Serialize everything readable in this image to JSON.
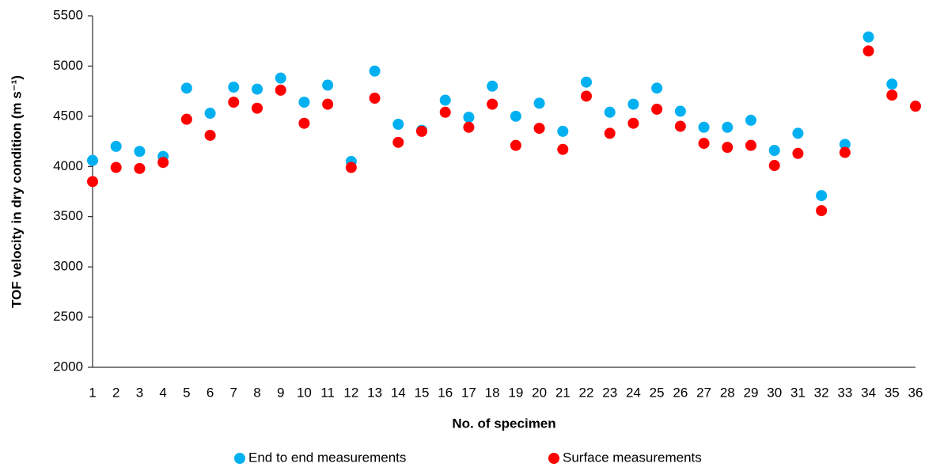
{
  "chart_data": {
    "type": "scatter",
    "x_label": "No. of specimen",
    "y_label": "TOF velocity in dry condition (m s⁻¹)",
    "x": [
      1,
      2,
      3,
      4,
      5,
      6,
      7,
      8,
      9,
      10,
      11,
      12,
      13,
      14,
      15,
      16,
      17,
      18,
      19,
      20,
      21,
      22,
      23,
      24,
      25,
      26,
      27,
      28,
      29,
      30,
      31,
      32,
      33,
      34,
      35,
      36
    ],
    "series": [
      {
        "name": "End to end measurements",
        "color": "#00b0f0",
        "values": [
          4060,
          4200,
          4150,
          4100,
          4780,
          4530,
          4790,
          4770,
          4880,
          4640,
          4810,
          4050,
          4950,
          4420,
          4360,
          4660,
          4490,
          4800,
          4500,
          4630,
          4350,
          4840,
          4540,
          4620,
          4780,
          4550,
          4390,
          4390,
          4460,
          4160,
          4330,
          3710,
          4220,
          5290,
          4820,
          null
        ]
      },
      {
        "name": "Surface measurements",
        "color": "#ff0000",
        "values": [
          3850,
          3990,
          3980,
          4040,
          4470,
          4310,
          4640,
          4580,
          4760,
          4430,
          4620,
          3990,
          4680,
          4240,
          4350,
          4540,
          4390,
          4620,
          4210,
          4380,
          4170,
          4700,
          4330,
          4430,
          4570,
          4400,
          4230,
          4190,
          4210,
          4010,
          4130,
          3560,
          4140,
          5150,
          4710,
          4600
        ]
      }
    ],
    "xlim": [
      1,
      36
    ],
    "xticks": [
      1,
      2,
      3,
      4,
      5,
      6,
      7,
      8,
      9,
      10,
      11,
      12,
      13,
      14,
      15,
      16,
      17,
      18,
      19,
      20,
      21,
      22,
      23,
      24,
      25,
      26,
      27,
      28,
      29,
      30,
      31,
      32,
      33,
      34,
      35,
      36
    ],
    "ylim": [
      2000,
      5500
    ],
    "yticks": [
      2000,
      2500,
      3000,
      3500,
      4000,
      4500,
      5000,
      5500
    ],
    "grid": false,
    "legend": "bottom"
  }
}
